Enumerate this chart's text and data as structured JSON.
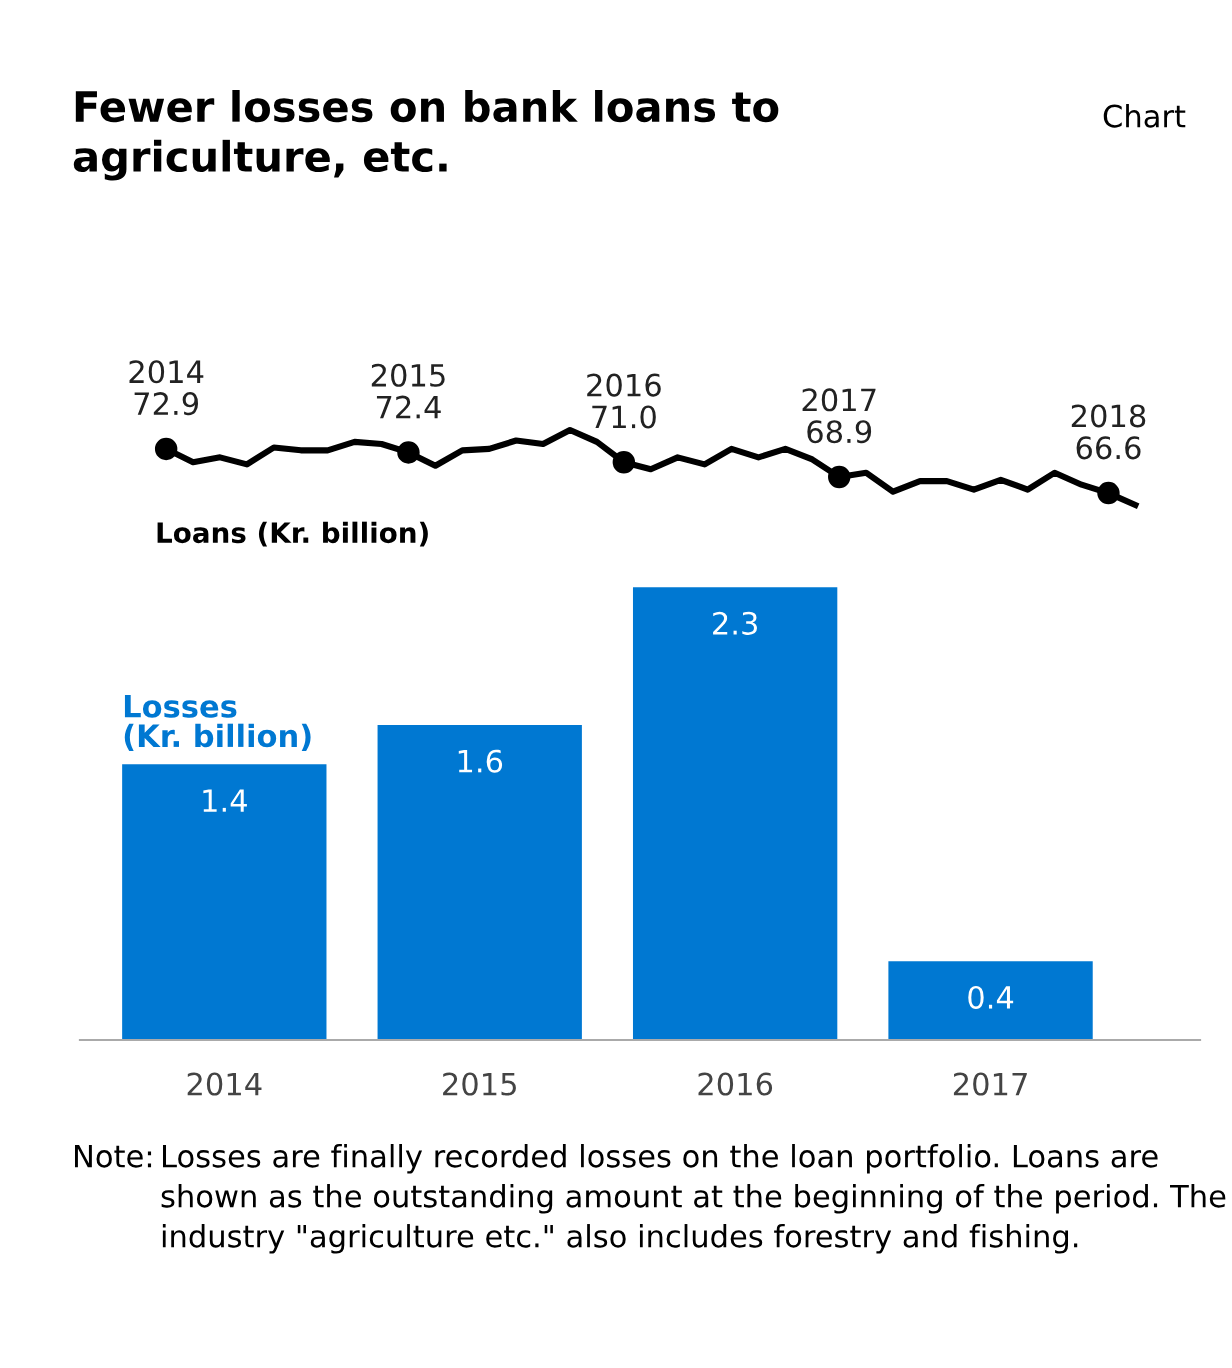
{
  "chart_data": [
    {
      "type": "line",
      "title": "Fewer losses on bank loans to\nagriculture, etc.",
      "annotations": [
        "Chart"
      ],
      "categories": [
        null,
        null,
        null,
        null,
        null,
        null,
        null,
        null,
        null,
        null,
        null,
        null,
        null,
        null,
        null,
        null,
        null,
        null,
        null,
        null,
        null,
        null,
        null,
        null,
        null,
        null,
        null,
        null,
        null,
        null,
        null,
        null,
        null,
        null,
        null,
        null,
        null
      ],
      "series": [
        {
          "name": "Loans (Kr. billion)",
          "color": "#000000",
          "values": [
            72.9,
            71.0,
            71.7,
            70.7,
            73.1,
            72.7,
            72.7,
            73.9,
            73.6,
            72.4,
            70.5,
            72.7,
            72.9,
            74.1,
            73.6,
            75.6,
            73.9,
            71.0,
            70.0,
            71.7,
            70.7,
            72.9,
            71.7,
            72.9,
            71.4,
            68.9,
            69.5,
            66.8,
            68.3,
            68.3,
            67.1,
            68.5,
            67.1,
            69.5,
            67.8,
            66.6,
            64.9
          ],
          "value_labels": [
            "2014\n72.9",
            null,
            null,
            null,
            null,
            null,
            null,
            null,
            null,
            "2015\n72.4",
            null,
            null,
            null,
            null,
            null,
            null,
            null,
            "2016\n71.0",
            null,
            null,
            null,
            null,
            null,
            null,
            null,
            "2017\n68.9",
            null,
            null,
            null,
            null,
            null,
            null,
            null,
            null,
            null,
            "2018\n66.6",
            null
          ]
        }
      ],
      "tick_labels": false
    },
    {
      "type": "bar",
      "categories": [
        "2014",
        "2015",
        "2016",
        "2017"
      ],
      "series": [
        {
          "name": "Losses\n(Kr. billion)",
          "color": "#0078d2",
          "values": [
            1.4,
            1.6,
            2.3,
            0.4
          ]
        }
      ],
      "data_labels": true,
      "tick_labels": "x",
      "annotations": [
        "Note:",
        "Losses are finally recorded losses on the loan portfolio. Loans are shown as the outstanding amount at the beginning of the period. The industry \"agriculture etc.\" also includes forestry and fishing."
      ]
    }
  ]
}
